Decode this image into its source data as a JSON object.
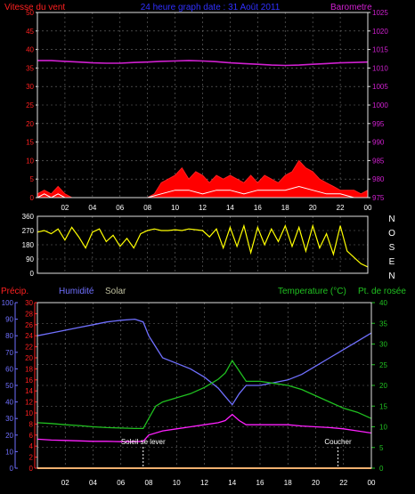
{
  "colors": {
    "wind": "#ff2020",
    "gust_fill": "#ff0000",
    "baro": "#d020d0",
    "direction": "#ffff00",
    "humidity": "#7070ff",
    "solar": "#c0c0a0",
    "temperature": "#20c020",
    "dewpoint": "#ff20ff",
    "title": "#3030ff",
    "frame": "#e0e0e0",
    "grid": "#707070",
    "rain": "#ff8000",
    "average": "#ffffff",
    "event": "#ffffff"
  },
  "time_ticks": [
    "02",
    "04",
    "06",
    "08",
    "10",
    "12",
    "14",
    "16",
    "18",
    "20",
    "22",
    "00"
  ],
  "chart_data": [
    {
      "type": "line",
      "name": "wind-barometer",
      "title": "24 heure graph date : 31 Août 2011",
      "ylabel": "Vitesse du vent",
      "y2label": "Barometre",
      "ylim": [
        0,
        50
      ],
      "y_ticks": [
        0,
        5,
        10,
        15,
        20,
        25,
        30,
        35,
        40,
        45,
        50
      ],
      "y2lim": [
        975,
        1025
      ],
      "y2_ticks": [
        975,
        980,
        985,
        990,
        995,
        1000,
        1005,
        1010,
        1015,
        1020,
        1025
      ],
      "x_range_hours": [
        0,
        24
      ],
      "series": [
        {
          "key": "wind",
          "axis": "left",
          "x": [
            0,
            0.5,
            1,
            1.5,
            2,
            2.5,
            3,
            4,
            5,
            6,
            7,
            8,
            8.5,
            9,
            9.5,
            10,
            10.5,
            11,
            11.5,
            12,
            12.5,
            13,
            13.5,
            14,
            14.5,
            15,
            15.5,
            16,
            16.5,
            17,
            17.5,
            18,
            18.5,
            19,
            19.5,
            20,
            20.5,
            21,
            21.5,
            22,
            22.5,
            23,
            23.5,
            24
          ],
          "values": [
            1,
            2,
            1,
            3,
            1,
            0,
            0,
            0,
            0,
            0,
            0,
            0,
            1,
            4,
            5,
            6,
            8,
            5,
            7,
            6,
            4,
            6,
            5,
            6,
            5,
            4,
            6,
            4,
            6,
            5,
            4,
            6,
            7,
            10,
            8,
            7,
            5,
            4,
            3,
            2,
            2,
            2,
            1,
            2
          ]
        },
        {
          "key": "average",
          "axis": "left",
          "x": [
            0,
            0.5,
            1,
            1.5,
            2,
            3,
            8,
            9,
            10,
            11,
            12,
            13,
            14,
            15,
            16,
            17,
            18,
            19,
            20,
            21,
            22,
            23,
            24
          ],
          "values": [
            0,
            1,
            0,
            1,
            0,
            0,
            0,
            1,
            2,
            2,
            1,
            2,
            2,
            1,
            2,
            2,
            2,
            3,
            2,
            1,
            1,
            0,
            0
          ]
        },
        {
          "key": "baro",
          "axis": "right",
          "x": [
            0,
            1,
            2,
            3,
            4,
            5,
            6,
            7,
            8,
            9,
            10,
            11,
            12,
            13,
            14,
            15,
            16,
            17,
            18,
            19,
            20,
            21,
            22,
            23,
            24
          ],
          "values": [
            1012,
            1012,
            1011.8,
            1011.6,
            1011.4,
            1011.3,
            1011.3,
            1011.5,
            1011.6,
            1011.8,
            1011.9,
            1012,
            1011.9,
            1011.7,
            1011.4,
            1011.2,
            1011,
            1010.8,
            1010.7,
            1010.8,
            1011,
            1011.2,
            1011.4,
            1011.5,
            1011.6
          ]
        }
      ]
    },
    {
      "type": "scatter",
      "name": "wind-direction",
      "ylim": [
        0,
        360
      ],
      "y_ticks": [
        0,
        90,
        180,
        270,
        360
      ],
      "compass_labels": [
        "N",
        "O",
        "S",
        "E",
        "N"
      ],
      "x_range_hours": [
        0,
        24
      ],
      "series": [
        {
          "key": "direction",
          "x": [
            0,
            0.5,
            1,
            1.5,
            2,
            2.5,
            3,
            3.5,
            4,
            4.5,
            5,
            5.5,
            6,
            6.5,
            7,
            7.5,
            8,
            8.5,
            9,
            9.5,
            10,
            10.5,
            11,
            11.5,
            12,
            12.5,
            13,
            13.5,
            14,
            14.5,
            15,
            15.5,
            16,
            16.5,
            17,
            17.5,
            18,
            18.5,
            19,
            19.5,
            20,
            20.5,
            21,
            21.5,
            22,
            22.5,
            23,
            23.5,
            24
          ],
          "values": [
            260,
            270,
            250,
            280,
            210,
            290,
            230,
            160,
            260,
            280,
            200,
            240,
            170,
            220,
            160,
            250,
            270,
            280,
            270,
            270,
            275,
            270,
            280,
            275,
            270,
            230,
            280,
            160,
            290,
            170,
            300,
            130,
            290,
            180,
            280,
            200,
            300,
            170,
            290,
            140,
            300,
            160,
            250,
            120,
            300,
            140,
            100,
            60,
            40
          ]
        }
      ]
    },
    {
      "type": "line",
      "name": "precip-humidity-temperature",
      "legend_labels": [
        "Précip.",
        "Humidité",
        "Solar",
        "Temperature (°C)",
        "Pt. de rosée"
      ],
      "precip_ylim": [
        0,
        100
      ],
      "precip_ticks": [
        0,
        10,
        20,
        30,
        40,
        50,
        60,
        70,
        80,
        90,
        100
      ],
      "humidity_ylim": [
        0,
        30
      ],
      "humidity_ticks": [
        0,
        2,
        4,
        6,
        8,
        10,
        12,
        14,
        16,
        18,
        20,
        22,
        24,
        26,
        28,
        30
      ],
      "temperature_ylim": [
        0,
        40
      ],
      "temperature_ticks": [
        0,
        5,
        10,
        15,
        20,
        25,
        30,
        35,
        40
      ],
      "x_range_hours": [
        0,
        24
      ],
      "series": [
        {
          "key": "humidity",
          "axis": "humidity",
          "x": [
            0,
            1,
            2,
            3,
            4,
            5,
            6,
            7,
            7.6,
            8,
            8.5,
            9,
            10,
            11,
            12,
            12.5,
            13,
            13.5,
            14,
            14.5,
            15,
            16,
            17,
            18,
            19,
            20,
            21,
            22,
            23,
            24
          ],
          "values": [
            24,
            24.5,
            25,
            25.5,
            26,
            26.5,
            26.8,
            27,
            26.5,
            24,
            22,
            20,
            19,
            18,
            16.5,
            15.5,
            14.5,
            13,
            11.5,
            13.5,
            15,
            15,
            15.5,
            16,
            17,
            18.5,
            20,
            21.5,
            23,
            24.5
          ]
        },
        {
          "key": "temperature",
          "axis": "temperature",
          "x": [
            0,
            1,
            2,
            3,
            4,
            5,
            6,
            7,
            7.6,
            8,
            8.5,
            9,
            10,
            11,
            12,
            12.5,
            13,
            13.5,
            14,
            14.5,
            15,
            16,
            17,
            18,
            19,
            20,
            21,
            22,
            23,
            24
          ],
          "values": [
            11,
            10.8,
            10.5,
            10.3,
            10,
            9.8,
            9.7,
            9.6,
            9.6,
            12,
            15,
            16,
            17,
            18,
            19.5,
            20.5,
            21.5,
            23,
            26,
            23.5,
            21,
            21,
            20.5,
            20,
            19,
            17.5,
            16,
            14.5,
            13.5,
            12
          ]
        },
        {
          "key": "dewpoint",
          "axis": "temperature",
          "x": [
            0,
            1,
            2,
            3,
            4,
            5,
            6,
            7,
            7.6,
            8,
            9,
            10,
            11,
            12,
            13,
            13.5,
            14,
            14.5,
            15,
            16,
            17,
            18,
            19,
            20,
            21,
            22,
            23,
            24
          ],
          "values": [
            7,
            6.8,
            6.7,
            6.6,
            6.5,
            6.5,
            6.4,
            6.4,
            6.5,
            8,
            9,
            9.5,
            10,
            10.5,
            11,
            11.5,
            13,
            11.5,
            10.5,
            10.5,
            10.5,
            10.5,
            10.2,
            10,
            9.8,
            9.5,
            9,
            8.5
          ]
        },
        {
          "key": "rain",
          "axis": "precip",
          "x": [
            0,
            24
          ],
          "values": [
            0,
            0
          ]
        }
      ],
      "annotations": [
        {
          "label": "Soleil se lever",
          "hour": 7.6
        },
        {
          "label": "Coucher",
          "hour": 21.6
        }
      ]
    }
  ]
}
